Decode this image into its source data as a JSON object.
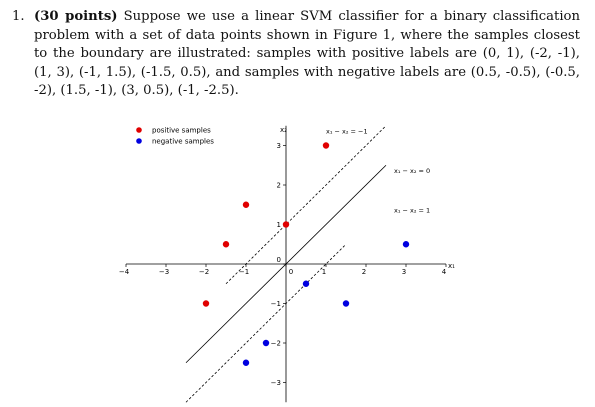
{
  "problem": {
    "number": "1.",
    "points_label": "(30 points)",
    "text": "Suppose we use a linear SVM classifier for a binary classification problem with a set of data points shown in Figure 1, where the samples closest to the boundary are illustrated: samples with positive labels are (0, 1), (-2, -1), (1, 3), (-1, 1.5), (-1.5, 0.5), and samples with negative labels are (0.5, -0.5), (-0.5, -2), (1.5, -1), (3, 0.5), (-1, -2.5)."
  },
  "chart_data": {
    "type": "scatter",
    "xlabel": "x₁",
    "ylabel": "x₂",
    "xlim": [
      -4,
      4
    ],
    "ylim": [
      -3.5,
      3.5
    ],
    "xticks": [
      -4,
      -3,
      -2,
      -1,
      0,
      1,
      2,
      3,
      4
    ],
    "yticks": [
      -3,
      -2,
      -1,
      0,
      1,
      2,
      3
    ],
    "grid": false,
    "legend_position": "top-left",
    "series": [
      {
        "name": "positive samples",
        "color": "#e00000",
        "points": [
          [
            0,
            1
          ],
          [
            -2,
            -1
          ],
          [
            1,
            3
          ],
          [
            -1,
            1.5
          ],
          [
            -1.5,
            0.5
          ]
        ]
      },
      {
        "name": "negative samples",
        "color": "#0000e0",
        "points": [
          [
            0.5,
            -0.5
          ],
          [
            -0.5,
            -2
          ],
          [
            1.5,
            -1
          ],
          [
            3,
            0.5
          ],
          [
            -1,
            -2.5
          ]
        ]
      }
    ],
    "lines": [
      {
        "label": "x₁ − x₂ = −1",
        "style": "dashed",
        "intercept": -1
      },
      {
        "label": "x₁ − x₂ = 0",
        "style": "solid",
        "intercept": 0
      },
      {
        "label": "x₁ − x₂ = 1",
        "style": "dashed",
        "intercept": 1
      }
    ]
  }
}
